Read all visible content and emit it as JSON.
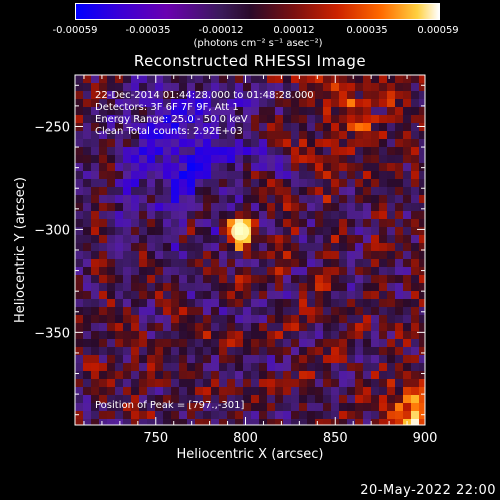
{
  "colorbar": {
    "ticks": [
      "-0.00059",
      "-0.00035",
      "-0.00012",
      "0.00012",
      "0.00035",
      "0.00059"
    ],
    "unit_label": "(photons cm⁻² s⁻¹ asec⁻²)"
  },
  "title": "Reconstructed RHESSI Image",
  "info": {
    "line1": "22-Dec-2014 01:44:28.000 to 01:48:28.000",
    "line2": "Detectors: 3F 6F 7F 9F, Att 1",
    "line3": "Energy Range: 25.0 - 50.0 keV",
    "line4": "Clean     Total counts: 2.92E+03",
    "peak": "Position of Peak = [797.,-301]"
  },
  "footer": {
    "date": "20-May-2022 22:00"
  },
  "chart_data": {
    "type": "heatmap",
    "title": "Reconstructed RHESSI Image",
    "xlabel": "Heliocentric X (arcsec)",
    "ylabel": "Heliocentric Y (arcsec)",
    "xlim": [
      705,
      900
    ],
    "ylim": [
      -395,
      -225
    ],
    "xticks": [
      750,
      800,
      850,
      900
    ],
    "yticks": [
      -250,
      -300,
      -350
    ],
    "peak": {
      "x": 797,
      "y": -301
    },
    "colorbar_range": [
      -0.00059,
      0.00059
    ],
    "colors": {
      "min": "#0000ff",
      "neutral": "#2a0a2a",
      "max": "#ffffff",
      "peak_core": "#ffffc0"
    }
  }
}
